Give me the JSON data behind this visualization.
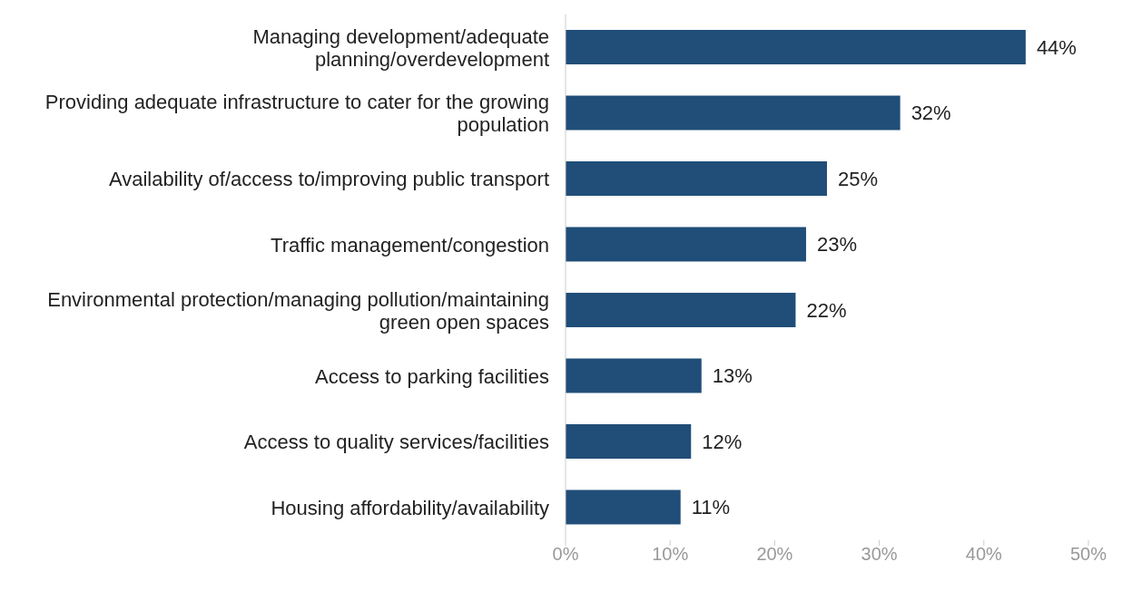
{
  "chart_data": {
    "type": "bar",
    "orientation": "horizontal",
    "categories": [
      "Managing development/adequate planning/overdevelopment",
      "Providing adequate infrastructure to cater for the growing population",
      "Availability of/access to/improving public transport",
      "Traffic management/congestion",
      "Environmental protection/managing pollution/maintaining green open spaces",
      "Access to parking facilities",
      "Access to quality services/facilities",
      "Housing affordability/availability"
    ],
    "values": [
      44,
      32,
      25,
      23,
      22,
      13,
      12,
      11
    ],
    "value_labels": [
      "44%",
      "32%",
      "25%",
      "23%",
      "22%",
      "13%",
      "12%",
      "11%"
    ],
    "color": "#204e78",
    "xlim": [
      0,
      50
    ],
    "xticks": [
      {
        "value": 0,
        "label": "0%"
      },
      {
        "value": 10,
        "label": "10%"
      },
      {
        "value": 20,
        "label": "20%"
      },
      {
        "value": 30,
        "label": "30%"
      },
      {
        "value": 40,
        "label": "40%"
      },
      {
        "value": 50,
        "label": "50%"
      }
    ],
    "grid": false,
    "legend": false
  }
}
